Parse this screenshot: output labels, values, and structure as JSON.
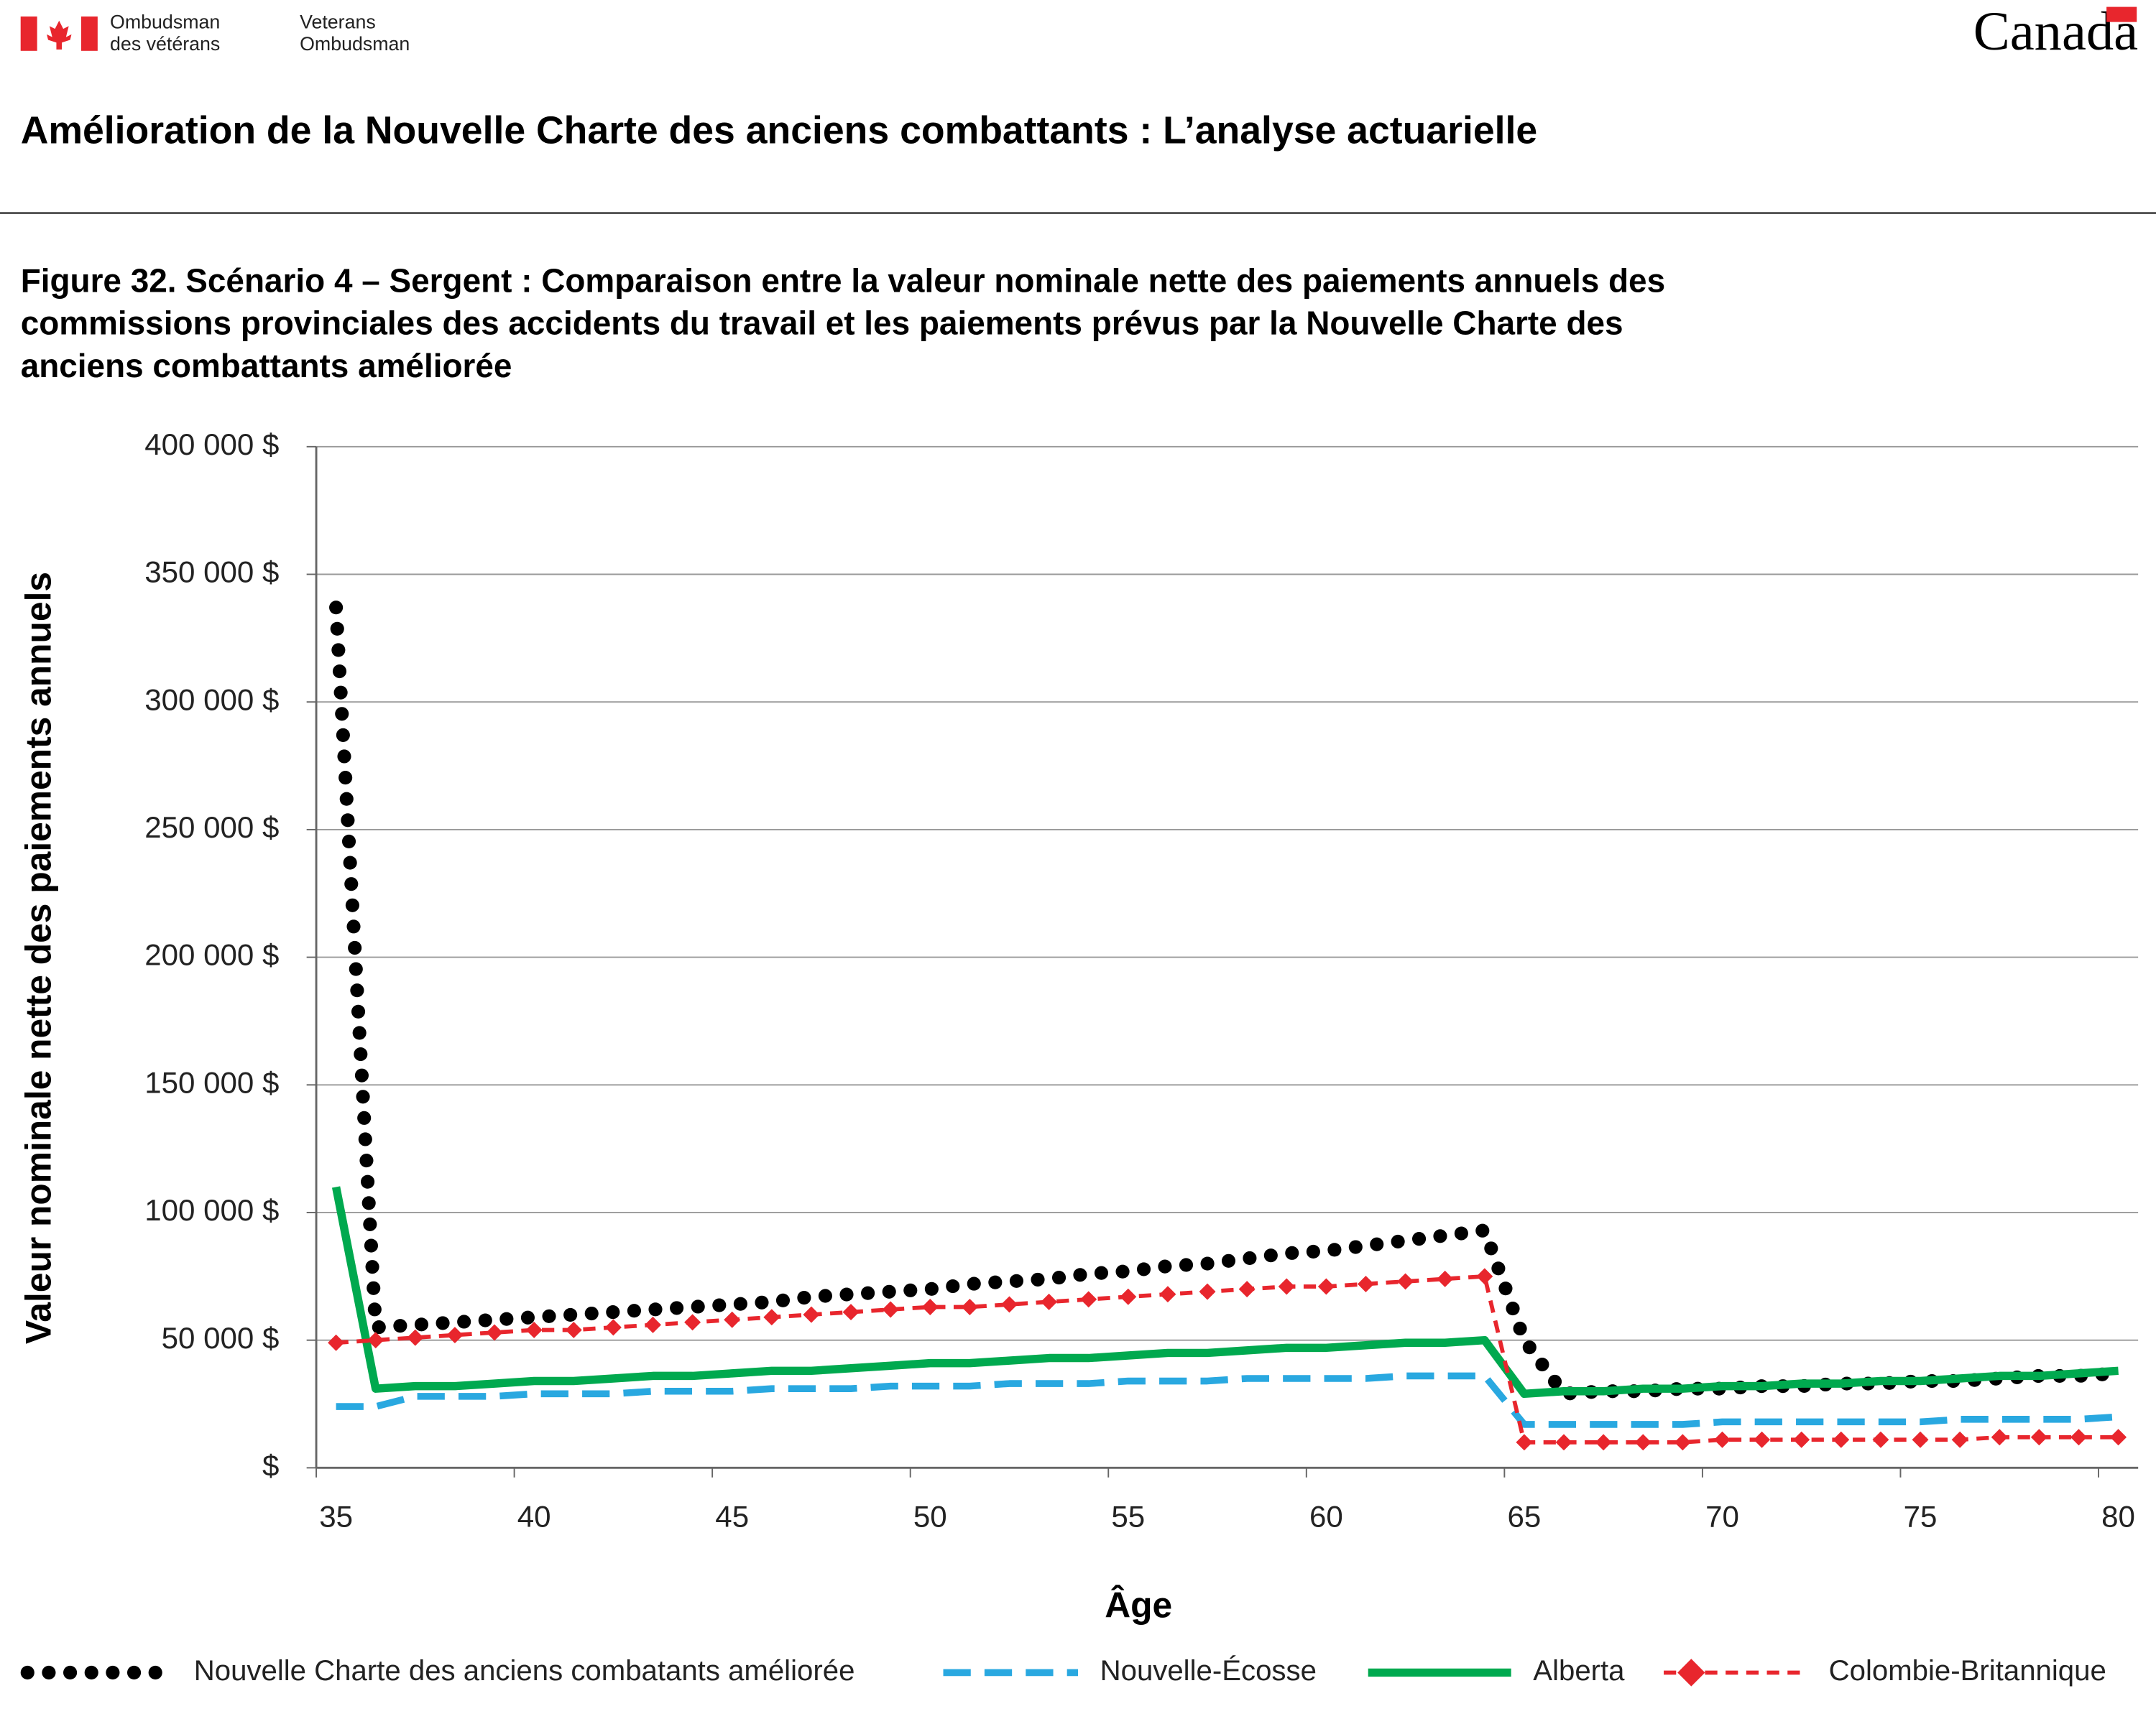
{
  "header": {
    "org_fr_1": "Ombudsman",
    "org_fr_2": "des vétérans",
    "org_en_1": "Veterans",
    "org_en_2": "Ombudsman",
    "wordmark": "Canada",
    "title": "Amélioration de la Nouvelle Charte des anciens combattants : L’analyse actuarielle"
  },
  "chart_data": {
    "type": "line",
    "title_lines": [
      "Figure 32. Scénario 4 – Sergent : Comparaison entre la valeur nominale nette des paiements annuels des",
      "commissions provinciales des accidents du travail et les paiements prévus par la Nouvelle Charte des",
      "anciens combattants améliorée"
    ],
    "xlabel": "Âge",
    "ylabel": "Valeur nominale nette des paiements annuels",
    "categories": [
      35,
      null,
      null,
      null,
      null,
      40,
      null,
      null,
      null,
      null,
      45,
      null,
      null,
      null,
      null,
      50,
      null,
      null,
      null,
      null,
      55,
      null,
      null,
      null,
      null,
      60,
      null,
      null,
      null,
      null,
      65,
      null,
      null,
      null,
      null,
      70,
      null,
      null,
      null,
      null,
      75,
      null,
      null,
      null,
      null,
      80
    ],
    "ylim": [
      0,
      400000
    ],
    "yticks": [
      {
        "value": 0,
        "label": "$"
      },
      {
        "value": 50000,
        "label": "50 000 $"
      },
      {
        "value": 100000,
        "label": "100 000 $"
      },
      {
        "value": 150000,
        "label": "150 000 $"
      },
      {
        "value": 200000,
        "label": "200 000 $"
      },
      {
        "value": 250000,
        "label": "250 000 $"
      },
      {
        "value": 300000,
        "label": "300 000 $"
      },
      {
        "value": 350000,
        "label": "350 000 $"
      },
      {
        "value": 400000,
        "label": "400 000 $"
      }
    ],
    "grid": true,
    "legend": "bottom",
    "series": [
      {
        "name": "Nouvelle Charte des anciens combatants améliorée",
        "color": "#000000",
        "line_style": "dotted",
        "values": [
          337000,
          55000,
          56000,
          57000,
          58000,
          59000,
          60000,
          61000,
          62000,
          63000,
          64000,
          65000,
          67000,
          68000,
          69000,
          70000,
          72000,
          73000,
          74000,
          76000,
          77000,
          79000,
          80000,
          82000,
          84000,
          85000,
          87000,
          89000,
          91000,
          93000,
          50000,
          29000,
          30000,
          30000,
          31000,
          31000,
          32000,
          32000,
          33000,
          33000,
          34000,
          34000,
          35000,
          36000,
          36000,
          37000
        ]
      },
      {
        "name": "Nouvelle-Écosse",
        "color": "#29a8e0",
        "line_style": "dashed",
        "values": [
          24000,
          24000,
          28000,
          28000,
          28000,
          29000,
          29000,
          29000,
          30000,
          30000,
          30000,
          31000,
          31000,
          31000,
          32000,
          32000,
          32000,
          33000,
          33000,
          33000,
          34000,
          34000,
          34000,
          35000,
          35000,
          35000,
          35000,
          36000,
          36000,
          36000,
          17000,
          17000,
          17000,
          17000,
          17000,
          18000,
          18000,
          18000,
          18000,
          18000,
          18000,
          19000,
          19000,
          19000,
          19000,
          20000
        ]
      },
      {
        "name": "Alberta",
        "color": "#00a94f",
        "line_style": "solid",
        "values": [
          110000,
          31000,
          32000,
          32000,
          33000,
          34000,
          34000,
          35000,
          36000,
          36000,
          37000,
          38000,
          38000,
          39000,
          40000,
          41000,
          41000,
          42000,
          43000,
          43000,
          44000,
          45000,
          45000,
          46000,
          47000,
          47000,
          48000,
          49000,
          49000,
          50000,
          29000,
          30000,
          30000,
          31000,
          31000,
          32000,
          32000,
          33000,
          33000,
          34000,
          34000,
          35000,
          36000,
          36000,
          37000,
          38000
        ]
      },
      {
        "name": "Colombie-Britannique",
        "color": "#e8262d",
        "line_style": "dashed",
        "marker": "diamond",
        "values": [
          49000,
          50000,
          51000,
          52000,
          53000,
          54000,
          54000,
          55000,
          56000,
          57000,
          58000,
          59000,
          60000,
          61000,
          62000,
          63000,
          63000,
          64000,
          65000,
          66000,
          67000,
          68000,
          69000,
          70000,
          71000,
          71000,
          72000,
          73000,
          74000,
          75000,
          10000,
          10000,
          10000,
          10000,
          10000,
          11000,
          11000,
          11000,
          11000,
          11000,
          11000,
          11000,
          12000,
          12000,
          12000,
          12000
        ]
      }
    ]
  }
}
